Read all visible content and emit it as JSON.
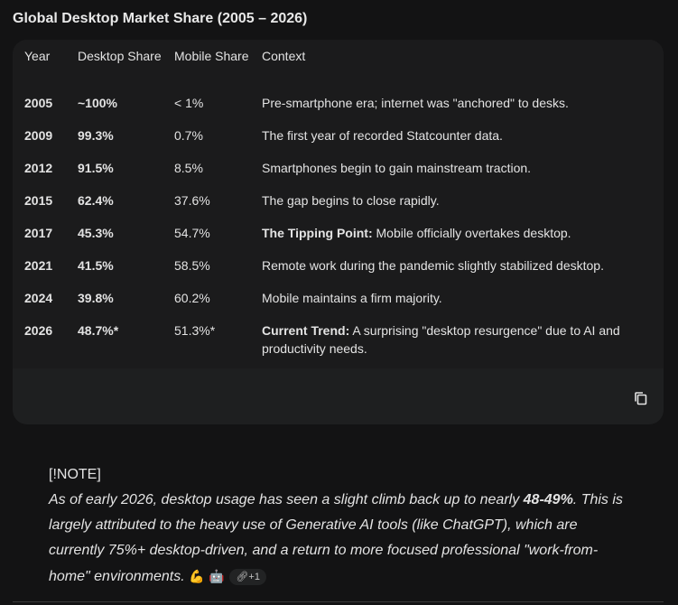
{
  "title": "Global Desktop Market Share (2005 – 2026)",
  "table": {
    "headers": [
      "Year",
      "Desktop Share",
      "Mobile Share",
      "Context"
    ],
    "rows": [
      {
        "year": "2005",
        "desktop": "~100%",
        "mobile": "< 1%",
        "context_bold": "",
        "context": "Pre-smartphone era; internet was \"anchored\" to desks."
      },
      {
        "year": "2009",
        "desktop": "99.3%",
        "mobile": "0.7%",
        "context_bold": "",
        "context": "The first year of recorded Statcounter data."
      },
      {
        "year": "2012",
        "desktop": "91.5%",
        "mobile": "8.5%",
        "context_bold": "",
        "context": "Smartphones begin to gain mainstream traction."
      },
      {
        "year": "2015",
        "desktop": "62.4%",
        "mobile": "37.6%",
        "context_bold": "",
        "context": "The gap begins to close rapidly."
      },
      {
        "year": "2017",
        "desktop": "45.3%",
        "mobile": "54.7%",
        "context_bold": "The Tipping Point:",
        "context": " Mobile officially overtakes desktop."
      },
      {
        "year": "2021",
        "desktop": "41.5%",
        "mobile": "58.5%",
        "context_bold": "",
        "context": "Remote work during the pandemic slightly stabilized desktop."
      },
      {
        "year": "2024",
        "desktop": "39.8%",
        "mobile": "60.2%",
        "context_bold": "",
        "context": "Mobile maintains a firm majority."
      },
      {
        "year": "2026",
        "desktop": "48.7%*",
        "mobile": "51.3%*",
        "context_bold": "Current Trend:",
        "context": " A surprising \"desktop resurgence\" due to AI and productivity needs."
      }
    ]
  },
  "copy_icon": "copy-icon",
  "note": {
    "label": "[!NOTE]",
    "text_before": "As of early 2026, desktop usage has seen a slight climb back up to nearly ",
    "bold": "48-49%",
    "text_after": ". This is largely attributed to the heavy use of Generative AI tools (like ChatGPT), which are currently 75%+ desktop-driven, and a return to more focused professional \"work-from-home\" environments. ",
    "emoji_1": "💪",
    "emoji_2": "🤖",
    "chip_label": "+1"
  }
}
